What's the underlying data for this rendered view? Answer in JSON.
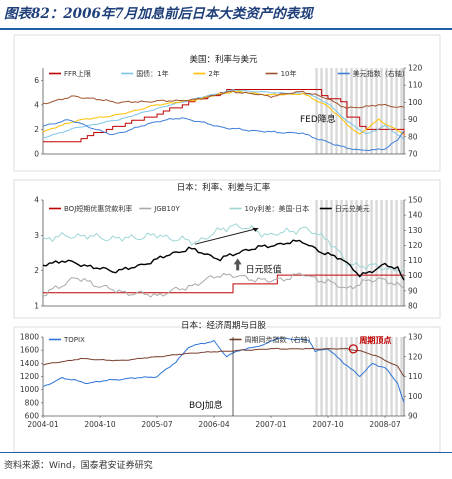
{
  "figure_title": "图表82：2006年7月加息前后日本大类资产的表现",
  "source_note": "资料来源：Wind，国泰君安证券研究",
  "colors": {
    "title": "#1f3f7a",
    "rule": "#1f5fa8",
    "shade": "#d9d9d9",
    "ffr": "#c00000",
    "ust1": "#7fc4e8",
    "ust2": "#ffc000",
    "ust10": "#a0522d",
    "usd": "#3f7fd8",
    "boj": "#c00000",
    "jgb10": "#a9a9a9",
    "spread": "#9ed6d6",
    "usdjpy": "#000000",
    "topix": "#2e75d6",
    "leading": "#7b3f2e"
  },
  "chart_data": [
    {
      "type": "line",
      "title": "美国：利率与美元",
      "ylim": [
        0,
        7
      ],
      "yticks": [
        0,
        2,
        4,
        6
      ],
      "y2lim": [
        70,
        120
      ],
      "y2ticks": [
        70,
        80,
        90,
        100,
        110,
        120
      ],
      "legend": "top",
      "annotations": [
        {
          "text": "FED降息",
          "x": "2007-10",
          "y": 2.6
        }
      ],
      "series": [
        {
          "name": "FFR上限",
          "axis": "left",
          "color": "#c00000",
          "step": true,
          "noise": 0,
          "points": [
            [
              "2004-01",
              1.0
            ],
            [
              "2004-06",
              1.0
            ],
            [
              "2004-07",
              1.25
            ],
            [
              "2004-08",
              1.5
            ],
            [
              "2004-09",
              1.75
            ],
            [
              "2004-11",
              2.0
            ],
            [
              "2004-12",
              2.25
            ],
            [
              "2005-02",
              2.5
            ],
            [
              "2005-03",
              2.75
            ],
            [
              "2005-05",
              3.0
            ],
            [
              "2005-07",
              3.25
            ],
            [
              "2005-08",
              3.5
            ],
            [
              "2005-09",
              3.75
            ],
            [
              "2005-11",
              4.0
            ],
            [
              "2005-12",
              4.25
            ],
            [
              "2006-01",
              4.5
            ],
            [
              "2006-03",
              4.75
            ],
            [
              "2006-05",
              5.0
            ],
            [
              "2006-06",
              5.25
            ],
            [
              "2007-09",
              4.75
            ],
            [
              "2007-10",
              4.5
            ],
            [
              "2007-12",
              4.25
            ],
            [
              "2008-01",
              3.0
            ],
            [
              "2008-03",
              2.25
            ],
            [
              "2008-04",
              2.0
            ],
            [
              "2008-10",
              1.5
            ]
          ]
        },
        {
          "name": "国债：1年",
          "axis": "left",
          "color": "#7fc4e8",
          "step": false,
          "noise": 0.06,
          "points": [
            [
              "2004-01",
              1.3
            ],
            [
              "2004-06",
              2.1
            ],
            [
              "2005-01",
              2.8
            ],
            [
              "2005-07",
              3.7
            ],
            [
              "2006-01",
              4.5
            ],
            [
              "2006-07",
              5.2
            ],
            [
              "2007-01",
              5.0
            ],
            [
              "2007-07",
              4.9
            ],
            [
              "2007-10",
              4.1
            ],
            [
              "2008-01",
              2.7
            ],
            [
              "2008-04",
              1.6
            ],
            [
              "2008-07",
              2.3
            ],
            [
              "2008-10",
              1.2
            ]
          ]
        },
        {
          "name": "2年",
          "axis": "left",
          "color": "#ffc000",
          "step": false,
          "noise": 0.08,
          "points": [
            [
              "2004-01",
              1.8
            ],
            [
              "2004-06",
              2.7
            ],
            [
              "2005-01",
              3.2
            ],
            [
              "2005-07",
              4.0
            ],
            [
              "2006-01",
              4.4
            ],
            [
              "2006-07",
              5.1
            ],
            [
              "2007-01",
              4.8
            ],
            [
              "2007-06",
              4.9
            ],
            [
              "2007-10",
              3.9
            ],
            [
              "2008-01",
              2.4
            ],
            [
              "2008-03",
              1.6
            ],
            [
              "2008-06",
              2.8
            ],
            [
              "2008-10",
              1.6
            ]
          ]
        },
        {
          "name": "10年",
          "axis": "left",
          "color": "#a0522d",
          "step": false,
          "noise": 0.1,
          "points": [
            [
              "2004-01",
              4.1
            ],
            [
              "2004-06",
              4.7
            ],
            [
              "2005-01",
              4.2
            ],
            [
              "2005-07",
              4.3
            ],
            [
              "2006-01",
              4.4
            ],
            [
              "2006-07",
              5.1
            ],
            [
              "2007-01",
              4.7
            ],
            [
              "2007-06",
              5.1
            ],
            [
              "2007-10",
              4.5
            ],
            [
              "2008-01",
              3.7
            ],
            [
              "2008-06",
              4.0
            ],
            [
              "2008-10",
              3.8
            ]
          ]
        },
        {
          "name": "美元指数（右轴）",
          "axis": "right",
          "color": "#3f7fd8",
          "step": false,
          "noise": 0.6,
          "points": [
            [
              "2004-01",
              86
            ],
            [
              "2004-05",
              90
            ],
            [
              "2004-12",
              81
            ],
            [
              "2005-07",
              89
            ],
            [
              "2005-11",
              91
            ],
            [
              "2006-06",
              85
            ],
            [
              "2006-12",
              83
            ],
            [
              "2007-06",
              82
            ],
            [
              "2007-11",
              75.5
            ],
            [
              "2008-03",
              72
            ],
            [
              "2008-07",
              73
            ],
            [
              "2008-09",
              78
            ],
            [
              "2008-10",
              84
            ]
          ]
        }
      ]
    },
    {
      "type": "line",
      "title": "日本：利率、利差与汇率",
      "ylim": [
        1,
        4
      ],
      "yticks": [
        1,
        2,
        3,
        4
      ],
      "y2lim": [
        80,
        150
      ],
      "y2ticks": [
        80,
        90,
        100,
        110,
        120,
        130,
        140,
        150
      ],
      "legend": "top",
      "annotations": [
        {
          "text": "日元贬值",
          "x": "2006-09",
          "y": 1.95
        }
      ],
      "series": [
        {
          "name": "BOJ短期优惠贷款利率",
          "axis": "left",
          "color": "#c00000",
          "step": true,
          "noise": 0,
          "points": [
            [
              "2004-01",
              1.375
            ],
            [
              "2006-07",
              1.625
            ],
            [
              "2007-02",
              1.875
            ],
            [
              "2008-10",
              1.875
            ]
          ]
        },
        {
          "name": "JGB10Y",
          "axis": "left",
          "color": "#a9a9a9",
          "step": false,
          "noise": 0.1,
          "points": [
            [
              "2004-01",
              1.3
            ],
            [
              "2004-06",
              1.8
            ],
            [
              "2005-01",
              1.4
            ],
            [
              "2005-07",
              1.3
            ],
            [
              "2006-01",
              1.6
            ],
            [
              "2006-05",
              1.9
            ],
            [
              "2007-01",
              1.7
            ],
            [
              "2007-06",
              1.9
            ],
            [
              "2008-01",
              1.5
            ],
            [
              "2008-06",
              1.8
            ],
            [
              "2008-10",
              1.5
            ]
          ]
        },
        {
          "name": "10y利差：美国-日本",
          "axis": "left",
          "color": "#9ed6d6",
          "step": false,
          "noise": 0.12,
          "points": [
            [
              "2004-01",
              2.9
            ],
            [
              "2004-06",
              3.0
            ],
            [
              "2005-01",
              2.9
            ],
            [
              "2005-07",
              3.0
            ],
            [
              "2006-01",
              2.8
            ],
            [
              "2006-07",
              3.3
            ],
            [
              "2007-01",
              3.0
            ],
            [
              "2007-06",
              3.2
            ],
            [
              "2007-10",
              2.9
            ],
            [
              "2008-01",
              2.2
            ],
            [
              "2008-06",
              2.1
            ],
            [
              "2008-10",
              2.0
            ]
          ]
        },
        {
          "name": "日元兑美元",
          "axis": "right",
          "color": "#000000",
          "step": false,
          "noise": 1.6,
          "points": [
            [
              "2004-01",
              107
            ],
            [
              "2004-04",
              110
            ],
            [
              "2004-12",
              103
            ],
            [
              "2005-04",
              106
            ],
            [
              "2005-07",
              111
            ],
            [
              "2005-12",
              118
            ],
            [
              "2006-05",
              111
            ],
            [
              "2006-09",
              117
            ],
            [
              "2007-01",
              120
            ],
            [
              "2007-06",
              123
            ],
            [
              "2007-09",
              115
            ],
            [
              "2007-12",
              112
            ],
            [
              "2008-03",
              100
            ],
            [
              "2008-07",
              107
            ],
            [
              "2008-09",
              105
            ],
            [
              "2008-10",
              97
            ]
          ]
        }
      ]
    },
    {
      "type": "line",
      "title": "日本：经济周期与日股",
      "ylim": [
        600,
        1800
      ],
      "yticks": [
        600,
        800,
        1000,
        1200,
        1400,
        1600,
        1800
      ],
      "y2lim": [
        90,
        130
      ],
      "y2ticks": [
        90,
        100,
        110,
        120,
        130
      ],
      "xticks": [
        "2004-01",
        "2004-10",
        "2005-07",
        "2006-04",
        "2007-01",
        "2007-10",
        "2008-07"
      ],
      "legend": "top",
      "annotations": [
        {
          "text": "BOJ加息",
          "x": "2006-07",
          "y": 760
        },
        {
          "text": "周期顶点",
          "x": "2008-02",
          "y": 1830
        }
      ],
      "series": [
        {
          "name": "TOPIX",
          "axis": "left",
          "color": "#2e75d6",
          "step": false,
          "noise": 14,
          "points": [
            [
              "2004-01",
              1040
            ],
            [
              "2004-04",
              1180
            ],
            [
              "2004-08",
              1100
            ],
            [
              "2004-12",
              1150
            ],
            [
              "2005-04",
              1180
            ],
            [
              "2005-07",
              1200
            ],
            [
              "2005-10",
              1420
            ],
            [
              "2005-12",
              1650
            ],
            [
              "2006-04",
              1740
            ],
            [
              "2006-06",
              1500
            ],
            [
              "2006-08",
              1600
            ],
            [
              "2006-12",
              1680
            ],
            [
              "2007-02",
              1790
            ],
            [
              "2007-05",
              1760
            ],
            [
              "2007-07",
              1760
            ],
            [
              "2007-08",
              1580
            ],
            [
              "2007-10",
              1620
            ],
            [
              "2007-12",
              1450
            ],
            [
              "2008-03",
              1200
            ],
            [
              "2008-05",
              1400
            ],
            [
              "2008-07",
              1330
            ],
            [
              "2008-09",
              1100
            ],
            [
              "2008-10",
              800
            ]
          ]
        },
        {
          "name": "周期同步指数（右轴）",
          "axis": "right",
          "color": "#7b3f2e",
          "step": false,
          "noise": 0.3,
          "points": [
            [
              "2004-01",
              116
            ],
            [
              "2004-07",
              119
            ],
            [
              "2005-01",
              118
            ],
            [
              "2005-07",
              120
            ],
            [
              "2006-01",
              122
            ],
            [
              "2006-07",
              123
            ],
            [
              "2007-01",
              124
            ],
            [
              "2007-07",
              124
            ],
            [
              "2008-01",
              124
            ],
            [
              "2008-03",
              123
            ],
            [
              "2008-06",
              120
            ],
            [
              "2008-09",
              115
            ],
            [
              "2008-10",
              110
            ]
          ]
        }
      ]
    }
  ]
}
